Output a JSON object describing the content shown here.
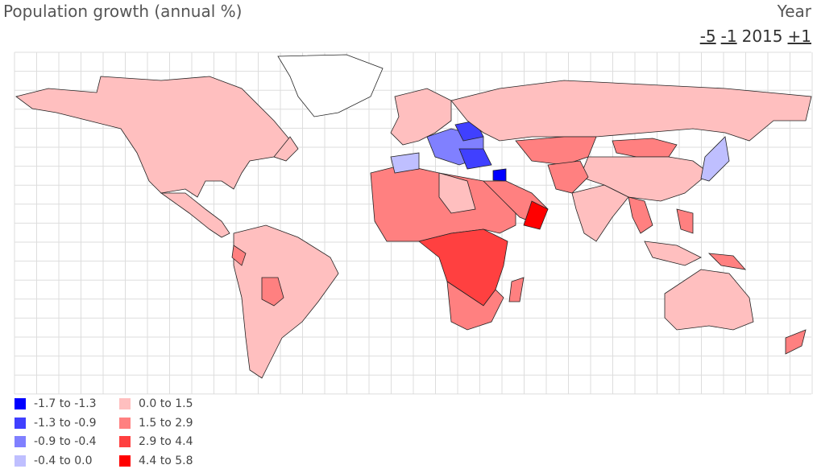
{
  "header": {
    "title": "Population growth (annual %)",
    "year_label": "Year",
    "year_nav": [
      {
        "label": "-5",
        "link": true
      },
      {
        "label": "-1",
        "link": true
      },
      {
        "label": "2015",
        "link": false
      },
      {
        "label": "+1",
        "link": true
      }
    ]
  },
  "legend": {
    "items": [
      {
        "label": "-1.7 to -1.3",
        "color": "#0000ff"
      },
      {
        "label": "-1.3 to -0.9",
        "color": "#4040ff"
      },
      {
        "label": "-0.9 to -0.4",
        "color": "#8080ff"
      },
      {
        "label": "-0.4 to 0.0",
        "color": "#bfbfff"
      },
      {
        "label": "0.0 to 1.5",
        "color": "#ffbfbf"
      },
      {
        "label": "1.5 to 2.9",
        "color": "#ff8080"
      },
      {
        "label": "2.9 to 4.4",
        "color": "#ff4040"
      },
      {
        "label": "4.4 to 5.8",
        "color": "#ff0000"
      }
    ]
  }
}
